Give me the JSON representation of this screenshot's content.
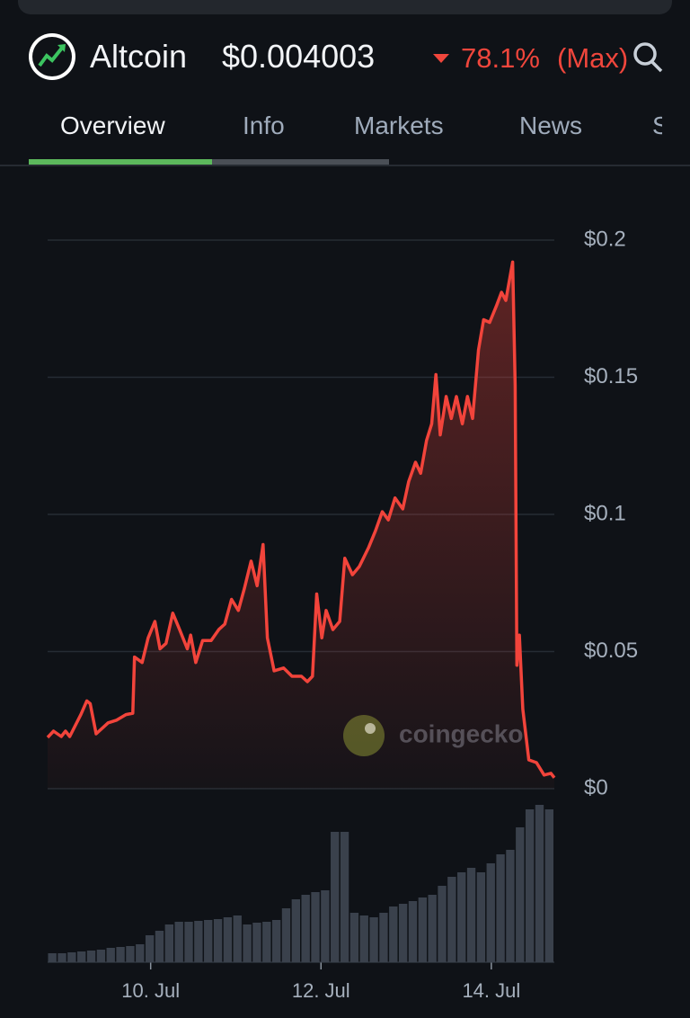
{
  "header": {
    "name": "Altcoin",
    "price": "$0.004003",
    "change": "78.1%",
    "period": "(Max)"
  },
  "tabs": [
    "Overview",
    "Info",
    "Markets",
    "News",
    "S"
  ],
  "watermark": "coingecko",
  "chart_data": {
    "type": "line",
    "x": [
      8.79,
      8.86,
      8.95,
      9.0,
      9.05,
      9.18,
      9.25,
      9.29,
      9.36,
      9.5,
      9.6,
      9.71,
      9.79,
      9.81,
      9.9,
      9.97,
      10.05,
      10.11,
      10.18,
      10.26,
      10.34,
      10.43,
      10.47,
      10.53,
      10.61,
      10.71,
      10.8,
      10.87,
      10.95,
      11.03,
      11.1,
      11.18,
      11.25,
      11.32,
      11.37,
      11.45,
      11.56,
      11.66,
      11.77,
      11.84,
      11.9,
      11.95,
      12.01,
      12.06,
      12.14,
      12.22,
      12.28,
      12.37,
      12.45,
      12.56,
      12.64,
      12.72,
      12.79,
      12.87,
      12.96,
      13.03,
      13.11,
      13.17,
      13.24,
      13.3,
      13.35,
      13.4,
      13.47,
      13.53,
      13.59,
      13.66,
      13.72,
      13.78,
      13.85,
      13.91,
      13.98,
      14.06,
      14.12,
      14.17,
      14.25,
      14.28,
      14.3,
      14.33,
      14.37,
      14.44,
      14.53,
      14.62,
      14.7,
      14.74
    ],
    "series": [
      {
        "color": "#f2443b",
        "values": [
          0.0187,
          0.021,
          0.019,
          0.021,
          0.019,
          0.027,
          0.032,
          0.031,
          0.02,
          0.024,
          0.025,
          0.027,
          0.0275,
          0.048,
          0.046,
          0.055,
          0.061,
          0.051,
          0.053,
          0.064,
          0.058,
          0.051,
          0.056,
          0.046,
          0.054,
          0.054,
          0.058,
          0.06,
          0.069,
          0.065,
          0.073,
          0.083,
          0.074,
          0.089,
          0.055,
          0.043,
          0.044,
          0.041,
          0.041,
          0.039,
          0.041,
          0.071,
          0.055,
          0.065,
          0.058,
          0.061,
          0.084,
          0.078,
          0.081,
          0.088,
          0.094,
          0.101,
          0.098,
          0.106,
          0.102,
          0.112,
          0.119,
          0.115,
          0.127,
          0.133,
          0.151,
          0.129,
          0.143,
          0.135,
          0.143,
          0.133,
          0.143,
          0.135,
          0.16,
          0.171,
          0.17,
          0.176,
          0.181,
          0.178,
          0.192,
          0.147,
          0.045,
          0.056,
          0.029,
          0.0105,
          0.0095,
          0.005,
          0.0056,
          0.004
        ]
      }
    ],
    "volume": {
      "color": "#3a414c",
      "values": [
        10,
        10,
        11,
        12,
        13,
        14,
        16,
        17,
        18,
        20,
        30,
        35,
        42,
        45,
        45,
        46,
        47,
        48,
        50,
        52,
        42,
        44,
        45,
        47,
        60,
        70,
        75,
        78,
        80,
        145,
        145,
        55,
        52,
        50,
        55,
        62,
        65,
        68,
        72,
        75,
        85,
        95,
        100,
        105,
        100,
        110,
        120,
        125,
        150,
        170,
        175,
        170
      ]
    },
    "xlim": [
      8.79,
      14.74
    ],
    "xticks": [
      {
        "value": 10,
        "label": "10. Jul"
      },
      {
        "value": 12,
        "label": "12. Jul"
      },
      {
        "value": 14,
        "label": "14. Jul"
      }
    ],
    "ylim": [
      0,
      0.2
    ],
    "yticks": [
      {
        "value": 0,
        "label": "$0"
      },
      {
        "value": 0.05,
        "label": "$0.05"
      },
      {
        "value": 0.1,
        "label": "$0.1"
      },
      {
        "value": 0.15,
        "label": "$0.15"
      },
      {
        "value": 0.2,
        "label": "$0.2"
      }
    ],
    "grid": true
  }
}
